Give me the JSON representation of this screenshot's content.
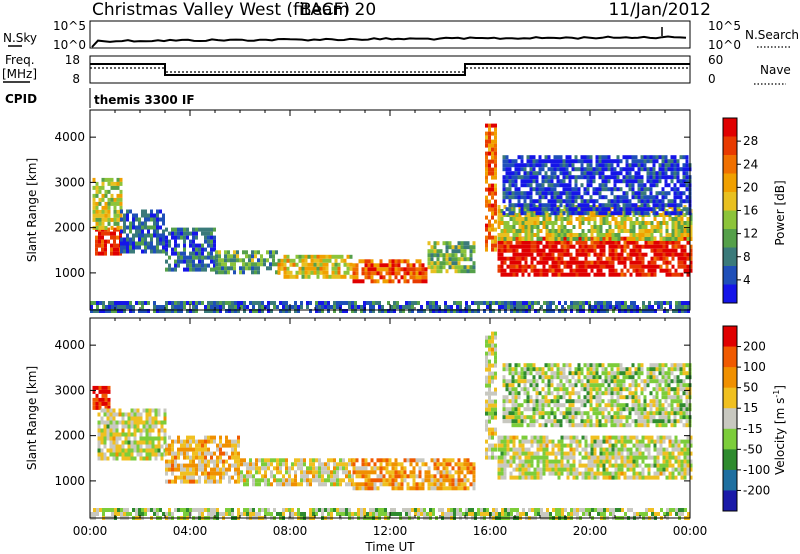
{
  "header": {
    "title": "Christmas Valley West (fitACF)",
    "beam": "Beam 20",
    "date": "11/Jan/2012"
  },
  "nsky_panel": {
    "left_label": "N.Sky",
    "right_label": "N.Search",
    "left_ticks": [
      "10^5",
      "10^0"
    ],
    "right_ticks": [
      "10^5",
      "10^0"
    ]
  },
  "freq_panel": {
    "left_label_1": "Freq.",
    "left_label_2": "[MHz]",
    "right_label": "Nave",
    "left_ticks": [
      "18",
      "8"
    ],
    "right_ticks": [
      "60",
      "0"
    ]
  },
  "cpid": {
    "label": "CPID",
    "value": "themis 3300 IF"
  },
  "chart_data": [
    {
      "type": "heatmap",
      "name": "power",
      "ylabel": "Slant Range [km]",
      "xlabel": "",
      "ylim": [
        180,
        4600
      ],
      "yticks": [
        "1000",
        "2000",
        "3000",
        "4000"
      ],
      "colorbar_label": "Power [dB]",
      "colorbar_ticks": [
        "4",
        "8",
        "12",
        "16",
        "20",
        "24",
        "28"
      ],
      "colorbar_colors": [
        "#1515e8",
        "#1f4fb8",
        "#3a7a7a",
        "#55a04a",
        "#8cc43a",
        "#e8c020",
        "#f0a000",
        "#f07000",
        "#e83a00",
        "#e00000"
      ],
      "regions": [
        {
          "t0": 0.2,
          "t1": 1.2,
          "r0": 1450,
          "r1": 2000,
          "level": 0.9
        },
        {
          "t0": 0.1,
          "t1": 1.3,
          "r0": 2000,
          "r1": 3100,
          "level": 0.5
        },
        {
          "t0": 1.2,
          "t1": 3.0,
          "r0": 1500,
          "r1": 2400,
          "level": 0.18
        },
        {
          "t0": 3.0,
          "t1": 5.0,
          "r0": 1050,
          "r1": 2000,
          "level": 0.2
        },
        {
          "t0": 5.0,
          "t1": 7.5,
          "r0": 1000,
          "r1": 1500,
          "level": 0.35
        },
        {
          "t0": 7.5,
          "t1": 10.5,
          "r0": 950,
          "r1": 1400,
          "level": 0.55
        },
        {
          "t0": 10.5,
          "t1": 13.5,
          "r0": 850,
          "r1": 1300,
          "level": 0.8
        },
        {
          "t0": 13.5,
          "t1": 15.3,
          "r0": 1050,
          "r1": 1700,
          "level": 0.4
        },
        {
          "t0": 15.8,
          "t1": 16.2,
          "r0": 1500,
          "r1": 4300,
          "level": 0.75
        },
        {
          "t0": 16.3,
          "t1": 24.0,
          "r0": 1000,
          "r1": 1800,
          "level": 0.95
        },
        {
          "t0": 16.3,
          "t1": 24.0,
          "r0": 1750,
          "r1": 2500,
          "level": 0.5
        },
        {
          "t0": 16.5,
          "t1": 24.0,
          "r0": 2300,
          "r1": 3600,
          "level": 0.1
        },
        {
          "t0": 0.0,
          "t1": 24.0,
          "r0": 200,
          "r1": 380,
          "level": 0.2
        }
      ]
    },
    {
      "type": "heatmap",
      "name": "velocity",
      "ylabel": "Slant Range [km]",
      "xlabel": "Time UT",
      "ylim": [
        180,
        4600
      ],
      "yticks": [
        "1000",
        "2000",
        "3000",
        "4000"
      ],
      "xticks": [
        "00:00",
        "04:00",
        "08:00",
        "12:00",
        "16:00",
        "20:00",
        "00:00"
      ],
      "colorbar_label": "Velocity [m s",
      "colorbar_label_sup": "-1",
      "colorbar_label_end": "]",
      "colorbar_ticks": [
        "200",
        "100",
        "50",
        "15",
        "-15",
        "-50",
        "-100",
        "-200"
      ],
      "colorbar_colors": [
        "#1a1aa8",
        "#1e6fa0",
        "#2e8b2e",
        "#7ccd3a",
        "#c8c8c0",
        "#f0c020",
        "#f09000",
        "#f05a00",
        "#e00000"
      ],
      "regions": [
        {
          "t0": 0.1,
          "t1": 0.8,
          "r0": 2600,
          "r1": 3100,
          "level": 0.95
        },
        {
          "t0": 0.3,
          "t1": 3.0,
          "r0": 1500,
          "r1": 2600,
          "level": 0.5
        },
        {
          "t0": 3.0,
          "t1": 6.0,
          "r0": 1000,
          "r1": 2000,
          "level": 0.62
        },
        {
          "t0": 6.0,
          "t1": 10.5,
          "r0": 900,
          "r1": 1500,
          "level": 0.55
        },
        {
          "t0": 10.5,
          "t1": 15.3,
          "r0": 850,
          "r1": 1500,
          "level": 0.68
        },
        {
          "t0": 15.8,
          "t1": 16.2,
          "r0": 1500,
          "r1": 4300,
          "level": 0.5
        },
        {
          "t0": 16.3,
          "t1": 24.0,
          "r0": 1100,
          "r1": 2000,
          "level": 0.5
        },
        {
          "t0": 16.5,
          "t1": 24.0,
          "r0": 2200,
          "r1": 3600,
          "level": 0.45
        },
        {
          "t0": 0.0,
          "t1": 24.0,
          "r0": 200,
          "r1": 400,
          "level": 0.45
        }
      ]
    }
  ]
}
